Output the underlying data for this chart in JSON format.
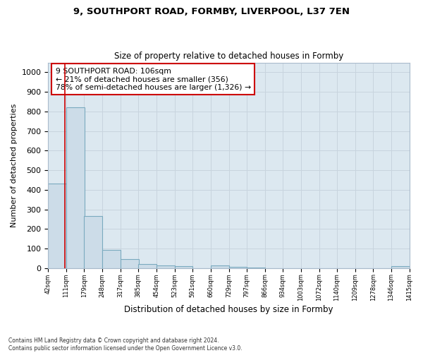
{
  "title_line1": "9, SOUTHPORT ROAD, FORMBY, LIVERPOOL, L37 7EN",
  "title_line2": "Size of property relative to detached houses in Formby",
  "xlabel": "Distribution of detached houses by size in Formby",
  "ylabel": "Number of detached properties",
  "footnote": "Contains HM Land Registry data © Crown copyright and database right 2024.\nContains public sector information licensed under the Open Government Licence v3.0.",
  "bar_left_edges": [
    42,
    111,
    179,
    248,
    317,
    385,
    454,
    523,
    591,
    660,
    729,
    797,
    866,
    934,
    1003,
    1072,
    1140,
    1209,
    1278,
    1346
  ],
  "bar_heights": [
    430,
    820,
    265,
    92,
    45,
    22,
    15,
    10,
    0,
    12,
    5,
    3,
    0,
    0,
    0,
    0,
    0,
    0,
    0,
    8
  ],
  "bin_width": 69,
  "bar_color": "#ccdce8",
  "bar_edge_color": "#7aaabf",
  "property_size": 106,
  "property_line_color": "#cc0000",
  "annotation_text": "9 SOUTHPORT ROAD: 106sqm\n← 21% of detached houses are smaller (356)\n78% of semi-detached houses are larger (1,326) →",
  "annotation_box_color": "#ffffff",
  "annotation_box_edge": "#cc0000",
  "ylim": [
    0,
    1050
  ],
  "xlim": [
    42,
    1415
  ],
  "tick_labels": [
    "42sqm",
    "111sqm",
    "179sqm",
    "248sqm",
    "317sqm",
    "385sqm",
    "454sqm",
    "523sqm",
    "591sqm",
    "660sqm",
    "729sqm",
    "797sqm",
    "866sqm",
    "934sqm",
    "1003sqm",
    "1072sqm",
    "1140sqm",
    "1209sqm",
    "1278sqm",
    "1346sqm",
    "1415sqm"
  ],
  "grid_color": "#c8d4de",
  "background_color": "#dce8f0"
}
